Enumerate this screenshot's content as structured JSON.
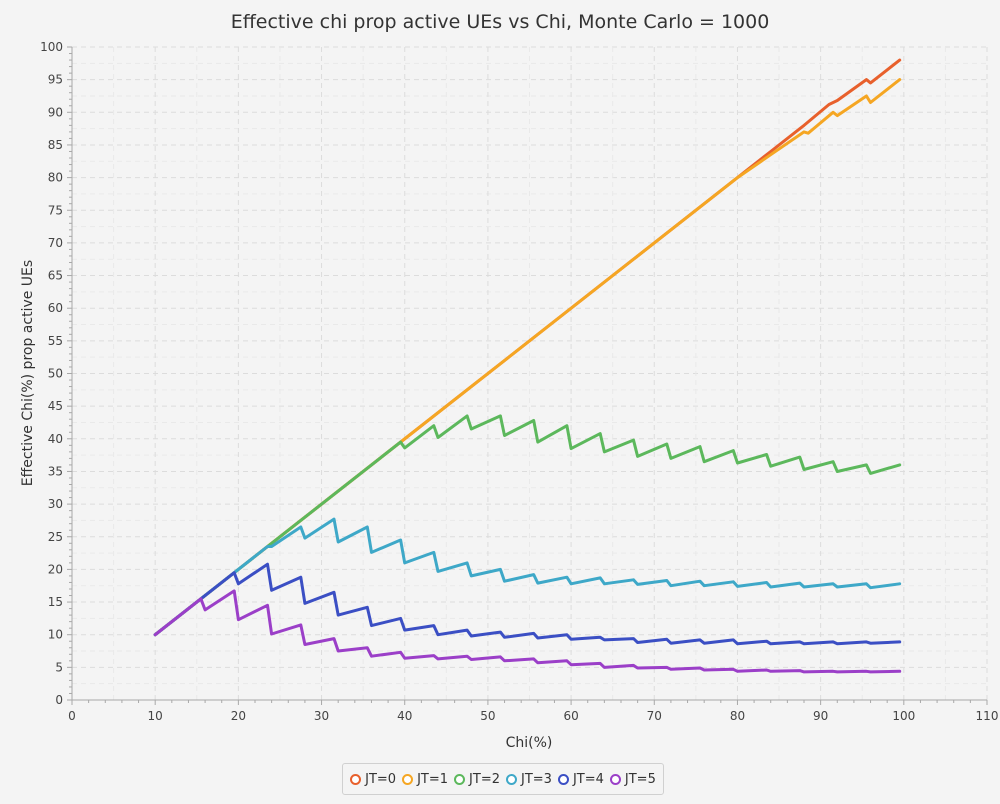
{
  "chart_data": {
    "type": "line",
    "title": "Effective chi prop active UEs vs Chi, Monte Carlo = 1000",
    "xlabel": "Chi(%)",
    "ylabel": "Effective Chi(%) prop active UEs",
    "xlim": [
      0,
      110
    ],
    "ylim": [
      0,
      100
    ],
    "xticks": [
      0,
      10,
      20,
      30,
      40,
      50,
      60,
      70,
      80,
      90,
      100,
      110
    ],
    "yticks": [
      0,
      5,
      10,
      15,
      20,
      25,
      30,
      35,
      40,
      45,
      50,
      55,
      60,
      65,
      70,
      75,
      80,
      85,
      90,
      95,
      100
    ],
    "grid": true,
    "legend_position": "bottom",
    "series": [
      {
        "name": "JT=0",
        "color": "#e8602c",
        "points": [
          [
            10,
            10
          ],
          [
            80,
            80
          ],
          [
            84,
            84
          ],
          [
            88,
            88
          ],
          [
            91,
            91.2
          ],
          [
            92,
            91.8
          ],
          [
            95.5,
            95
          ],
          [
            96,
            94.5
          ],
          [
            99.5,
            98
          ]
        ]
      },
      {
        "name": "JT=1",
        "color": "#f5a623",
        "points": [
          [
            10,
            10
          ],
          [
            80,
            80
          ],
          [
            84,
            83.5
          ],
          [
            88,
            87
          ],
          [
            88.5,
            86.8
          ],
          [
            91.5,
            90
          ],
          [
            92,
            89.5
          ],
          [
            95.5,
            92.5
          ],
          [
            96,
            91.5
          ],
          [
            99.5,
            95
          ]
        ]
      },
      {
        "name": "JT=2",
        "color": "#5cb85c",
        "points": [
          [
            10,
            10
          ],
          [
            36,
            36
          ],
          [
            39.5,
            39.5
          ],
          [
            40,
            38.6
          ],
          [
            43.5,
            42
          ],
          [
            44,
            40.2
          ],
          [
            47.5,
            43.5
          ],
          [
            48,
            41.5
          ],
          [
            51.5,
            43.5
          ],
          [
            52,
            40.5
          ],
          [
            55.5,
            42.8
          ],
          [
            56,
            39.5
          ],
          [
            59.5,
            42
          ],
          [
            60,
            38.5
          ],
          [
            63.5,
            40.8
          ],
          [
            64,
            38
          ],
          [
            67.5,
            39.8
          ],
          [
            68,
            37.3
          ],
          [
            71.5,
            39.2
          ],
          [
            72,
            37
          ],
          [
            75.5,
            38.8
          ],
          [
            76,
            36.5
          ],
          [
            79.5,
            38.2
          ],
          [
            80,
            36.3
          ],
          [
            83.5,
            37.6
          ],
          [
            84,
            35.8
          ],
          [
            87.5,
            37.2
          ],
          [
            88,
            35.3
          ],
          [
            91.5,
            36.5
          ],
          [
            92,
            35
          ],
          [
            95.5,
            36
          ],
          [
            96,
            34.7
          ],
          [
            99.5,
            36
          ]
        ]
      },
      {
        "name": "JT=3",
        "color": "#3ea8c8",
        "points": [
          [
            10,
            10
          ],
          [
            23.5,
            23.5
          ],
          [
            24,
            23.5
          ],
          [
            27.5,
            26.5
          ],
          [
            28,
            24.8
          ],
          [
            31.5,
            27.7
          ],
          [
            32,
            24.2
          ],
          [
            35.5,
            26.5
          ],
          [
            36,
            22.6
          ],
          [
            39.5,
            24.5
          ],
          [
            40,
            21
          ],
          [
            43.5,
            22.6
          ],
          [
            44,
            19.7
          ],
          [
            47.5,
            21
          ],
          [
            48,
            19
          ],
          [
            51.5,
            20
          ],
          [
            52,
            18.2
          ],
          [
            55.5,
            19.2
          ],
          [
            56,
            17.9
          ],
          [
            59.5,
            18.8
          ],
          [
            60,
            17.8
          ],
          [
            63.5,
            18.7
          ],
          [
            64,
            17.8
          ],
          [
            67.5,
            18.4
          ],
          [
            68,
            17.7
          ],
          [
            71.5,
            18.3
          ],
          [
            72,
            17.5
          ],
          [
            75.5,
            18.2
          ],
          [
            76,
            17.5
          ],
          [
            79.5,
            18.1
          ],
          [
            80,
            17.4
          ],
          [
            83.5,
            18
          ],
          [
            84,
            17.3
          ],
          [
            87.5,
            17.9
          ],
          [
            88,
            17.3
          ],
          [
            91.5,
            17.8
          ],
          [
            92,
            17.3
          ],
          [
            95.5,
            17.8
          ],
          [
            96,
            17.2
          ],
          [
            99.5,
            17.8
          ]
        ]
      },
      {
        "name": "JT=4",
        "color": "#3b4fc4",
        "points": [
          [
            10,
            10
          ],
          [
            19.5,
            19.5
          ],
          [
            20,
            17.8
          ],
          [
            23.5,
            20.8
          ],
          [
            24,
            16.8
          ],
          [
            27.5,
            18.8
          ],
          [
            28,
            14.8
          ],
          [
            31.5,
            16.5
          ],
          [
            32,
            13
          ],
          [
            35.5,
            14.2
          ],
          [
            36,
            11.4
          ],
          [
            39.5,
            12.5
          ],
          [
            40,
            10.7
          ],
          [
            43.5,
            11.4
          ],
          [
            44,
            10
          ],
          [
            47.5,
            10.7
          ],
          [
            48,
            9.8
          ],
          [
            51.5,
            10.4
          ],
          [
            52,
            9.6
          ],
          [
            55.5,
            10.2
          ],
          [
            56,
            9.5
          ],
          [
            59.5,
            10
          ],
          [
            60,
            9.3
          ],
          [
            63.5,
            9.6
          ],
          [
            64,
            9.2
          ],
          [
            67.5,
            9.4
          ],
          [
            68,
            8.8
          ],
          [
            71.5,
            9.3
          ],
          [
            72,
            8.7
          ],
          [
            75.5,
            9.2
          ],
          [
            76,
            8.7
          ],
          [
            79.5,
            9.2
          ],
          [
            80,
            8.6
          ],
          [
            83.5,
            9
          ],
          [
            84,
            8.6
          ],
          [
            87.5,
            8.9
          ],
          [
            88,
            8.6
          ],
          [
            91.5,
            8.9
          ],
          [
            92,
            8.6
          ],
          [
            95.5,
            8.9
          ],
          [
            96,
            8.7
          ],
          [
            99.5,
            8.9
          ]
        ]
      },
      {
        "name": "JT=5",
        "color": "#9b3fc8",
        "points": [
          [
            10,
            10
          ],
          [
            15.5,
            15.5
          ],
          [
            16,
            13.8
          ],
          [
            19.5,
            16.7
          ],
          [
            20,
            12.3
          ],
          [
            23.5,
            14.5
          ],
          [
            24,
            10.1
          ],
          [
            27.5,
            11.5
          ],
          [
            28,
            8.5
          ],
          [
            31.5,
            9.4
          ],
          [
            32,
            7.5
          ],
          [
            35.5,
            8
          ],
          [
            36,
            6.7
          ],
          [
            39.5,
            7.3
          ],
          [
            40,
            6.4
          ],
          [
            43.5,
            6.8
          ],
          [
            44,
            6.3
          ],
          [
            47.5,
            6.7
          ],
          [
            48,
            6.2
          ],
          [
            51.5,
            6.6
          ],
          [
            52,
            6
          ],
          [
            55.5,
            6.3
          ],
          [
            56,
            5.7
          ],
          [
            59.5,
            6
          ],
          [
            60,
            5.4
          ],
          [
            63.5,
            5.6
          ],
          [
            64,
            5
          ],
          [
            67.5,
            5.3
          ],
          [
            68,
            4.9
          ],
          [
            71.5,
            5
          ],
          [
            72,
            4.7
          ],
          [
            75.5,
            4.9
          ],
          [
            76,
            4.6
          ],
          [
            79.5,
            4.7
          ],
          [
            80,
            4.4
          ],
          [
            83.5,
            4.6
          ],
          [
            84,
            4.4
          ],
          [
            87.5,
            4.5
          ],
          [
            88,
            4.3
          ],
          [
            91.5,
            4.4
          ],
          [
            92,
            4.3
          ],
          [
            95.5,
            4.4
          ],
          [
            96,
            4.3
          ],
          [
            99.5,
            4.4
          ]
        ]
      }
    ]
  }
}
